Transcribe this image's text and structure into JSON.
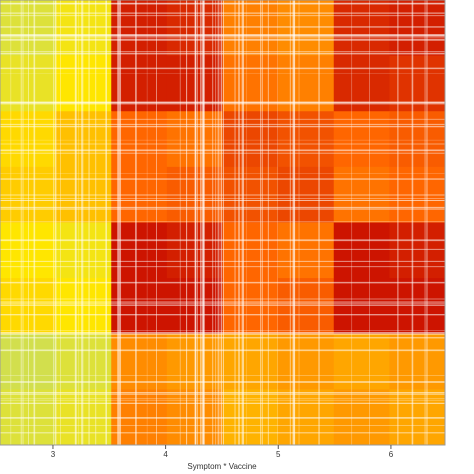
{
  "chart_data": {
    "type": "heatmap",
    "xlabel": "Symptom * Vaccine",
    "xlim": [
      2.53,
      6.48
    ],
    "xticks": [
      3,
      4,
      5,
      6
    ],
    "zlim": [
      0,
      3
    ],
    "colors": [
      "#c00000",
      "#ff6600",
      "#ffe600",
      "#8fd4c0"
    ],
    "z": [
      [
        2.3,
        2.1,
        0.3,
        0.4,
        1.2,
        1.3,
        0.4,
        0.3
      ],
      [
        2.2,
        2.0,
        0.3,
        0.3,
        1.1,
        1.2,
        0.4,
        0.5
      ],
      [
        1.9,
        1.7,
        1.0,
        1.1,
        0.7,
        0.8,
        1.0,
        0.9
      ],
      [
        1.8,
        1.7,
        1.0,
        0.9,
        0.8,
        0.7,
        1.1,
        1.0
      ],
      [
        2.0,
        2.1,
        0.2,
        0.3,
        1.0,
        1.1,
        0.2,
        0.3
      ],
      [
        1.9,
        2.0,
        0.2,
        0.2,
        1.0,
        0.9,
        0.2,
        0.2
      ],
      [
        2.4,
        2.3,
        1.3,
        1.4,
        1.5,
        1.4,
        1.5,
        1.4
      ],
      [
        2.3,
        2.2,
        1.2,
        1.3,
        1.6,
        1.5,
        1.4,
        1.5
      ]
    ]
  }
}
